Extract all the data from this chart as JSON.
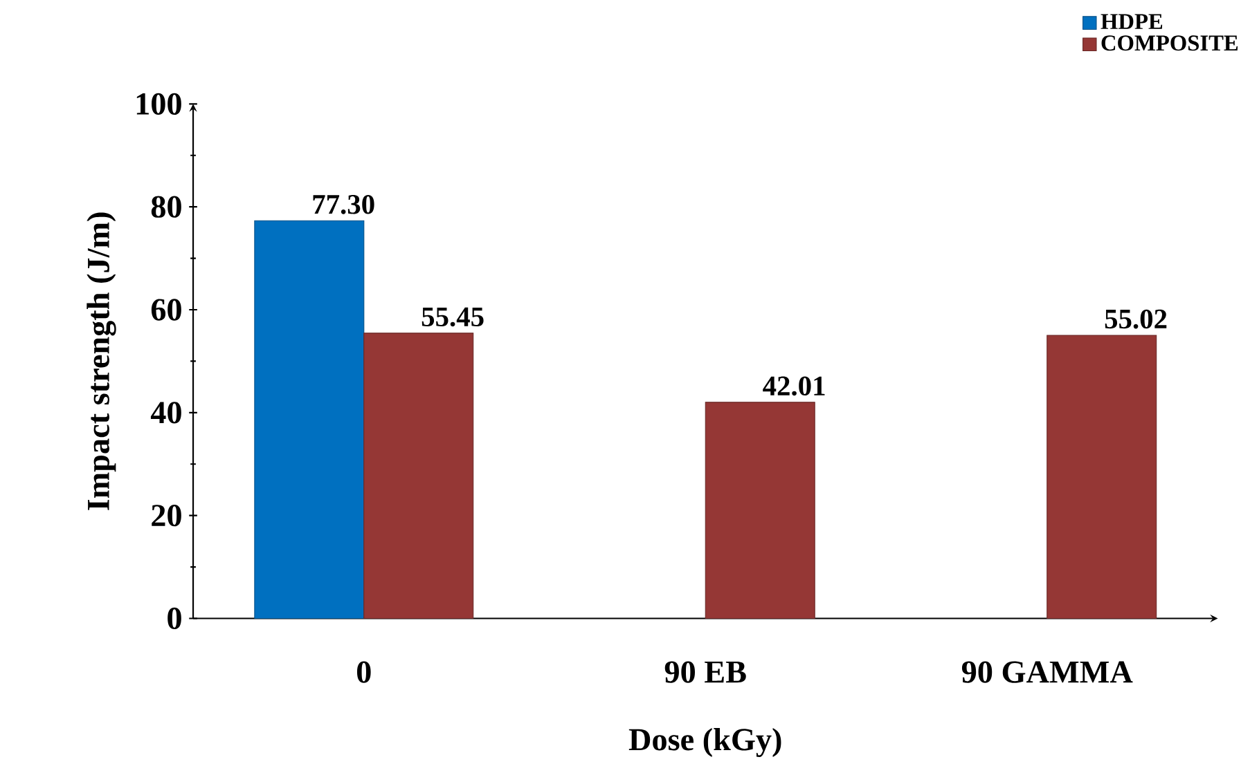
{
  "chart_data": {
    "type": "bar",
    "xlabel": "Dose (kGy)",
    "ylabel": "Impact strength (J/m)",
    "categories": [
      "0",
      "90 EB",
      "90 GAMMA"
    ],
    "series": [
      {
        "name": "HDPE",
        "color": "#0070c0",
        "values": [
          77.3,
          null,
          null
        ],
        "value_labels": [
          "77.30",
          null,
          null
        ]
      },
      {
        "name": "COMPOSITE",
        "color": "#953735",
        "values": [
          55.45,
          42.01,
          55.02
        ],
        "value_labels": [
          "55.45",
          "42.01",
          "55.02"
        ]
      }
    ],
    "ylim": [
      0,
      100
    ],
    "yticks": [
      0,
      20,
      40,
      60,
      80,
      100
    ],
    "grid": false,
    "legend": "top right"
  }
}
